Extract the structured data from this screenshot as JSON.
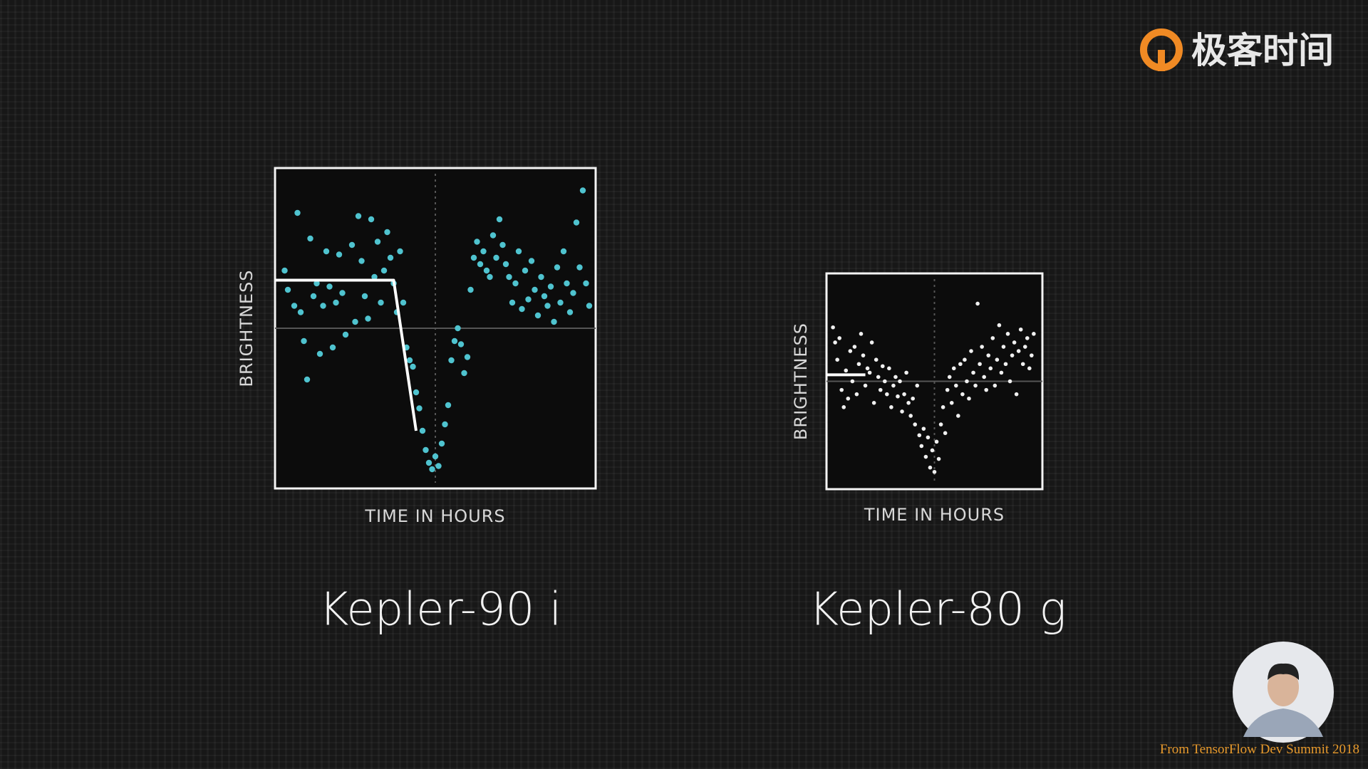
{
  "logo": "极客时间",
  "source": "From TensorFlow Dev Summit 2018",
  "chart_data": [
    {
      "type": "scatter",
      "title": "Kepler-90 i",
      "xlabel": "TIME IN HOURS",
      "ylabel": "BRIGHTNESS",
      "color": "#4fc3cf",
      "xlim": [
        0,
        100
      ],
      "ylim": [
        0,
        100
      ],
      "x": [
        3,
        4,
        6,
        7,
        8,
        9,
        10,
        11,
        12,
        13,
        14,
        15,
        16,
        17,
        18,
        19,
        20,
        21,
        22,
        24,
        25,
        26,
        27,
        28,
        29,
        30,
        31,
        32,
        33,
        34,
        35,
        36,
        37,
        38,
        39,
        40,
        41,
        42,
        43,
        44,
        45,
        46,
        47,
        48,
        49,
        50,
        51,
        52,
        53,
        54,
        55,
        56,
        57,
        58,
        59,
        60,
        61,
        62,
        63,
        64,
        65,
        66,
        67,
        68,
        69,
        70,
        71,
        72,
        73,
        74,
        75,
        76,
        77,
        78,
        79,
        80,
        81,
        82,
        83,
        84,
        85,
        86,
        87,
        88,
        89,
        90,
        91,
        92,
        93,
        94,
        95,
        96,
        97,
        98
      ],
      "y": [
        68,
        62,
        57,
        86,
        55,
        46,
        34,
        78,
        60,
        64,
        42,
        57,
        74,
        63,
        44,
        58,
        73,
        61,
        48,
        76,
        52,
        85,
        71,
        60,
        53,
        84,
        66,
        77,
        58,
        68,
        80,
        72,
        64,
        55,
        74,
        58,
        44,
        40,
        38,
        30,
        25,
        18,
        12,
        8,
        6,
        10,
        7,
        14,
        20,
        26,
        40,
        46,
        50,
        45,
        36,
        41,
        62,
        72,
        77,
        70,
        74,
        68,
        66,
        79,
        72,
        84,
        76,
        70,
        66,
        58,
        64,
        74,
        56,
        68,
        59,
        71,
        62,
        54,
        66,
        60,
        57,
        63,
        52,
        69,
        58,
        74,
        64,
        55,
        61,
        83,
        69,
        93,
        64,
        57
      ],
      "fit": {
        "color": "#ffffff",
        "x": [
          0,
          37,
          44
        ],
        "y": [
          65,
          65,
          18
        ]
      }
    },
    {
      "type": "scatter",
      "title": "Kepler-80 g",
      "xlabel": "TIME IN HOURS",
      "ylabel": "BRIGHTNESS",
      "color": "#f0f0f0",
      "xlim": [
        0,
        100
      ],
      "ylim": [
        0,
        100
      ],
      "x": [
        3,
        4,
        5,
        6,
        7,
        8,
        9,
        10,
        11,
        12,
        13,
        14,
        15,
        16,
        17,
        18,
        19,
        20,
        21,
        22,
        23,
        24,
        25,
        26,
        27,
        28,
        29,
        30,
        31,
        32,
        33,
        34,
        35,
        36,
        37,
        38,
        39,
        40,
        41,
        42,
        43,
        44,
        45,
        46,
        47,
        48,
        49,
        50,
        51,
        52,
        53,
        54,
        55,
        56,
        57,
        58,
        59,
        60,
        61,
        62,
        63,
        64,
        65,
        66,
        67,
        68,
        69,
        70,
        71,
        72,
        73,
        74,
        75,
        76,
        77,
        78,
        79,
        80,
        81,
        82,
        83,
        84,
        85,
        86,
        87,
        88,
        89,
        90,
        91,
        92,
        93,
        94,
        95,
        96
      ],
      "y": [
        75,
        68,
        60,
        70,
        46,
        38,
        55,
        42,
        64,
        50,
        66,
        44,
        58,
        72,
        62,
        48,
        56,
        54,
        68,
        40,
        60,
        52,
        46,
        57,
        50,
        44,
        56,
        38,
        48,
        52,
        43,
        50,
        36,
        44,
        54,
        40,
        34,
        42,
        30,
        48,
        25,
        20,
        28,
        15,
        24,
        10,
        18,
        8,
        22,
        14,
        30,
        38,
        26,
        46,
        52,
        40,
        56,
        48,
        34,
        58,
        44,
        60,
        50,
        42,
        64,
        54,
        48,
        86,
        58,
        66,
        52,
        46,
        62,
        56,
        70,
        48,
        60,
        76,
        54,
        66,
        58,
        72,
        50,
        62,
        68,
        44,
        64,
        74,
        58,
        66,
        70,
        56,
        62,
        72
      ],
      "fit": {
        "color": "#ffffff",
        "x": [
          0,
          18
        ],
        "y": [
          53,
          53
        ]
      }
    }
  ]
}
